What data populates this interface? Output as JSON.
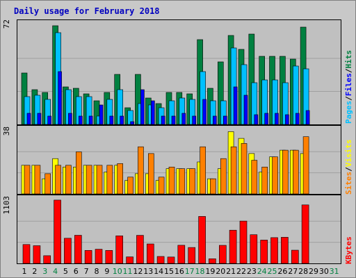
{
  "chart_data": {
    "type": "bar",
    "title": "Daily usage for February 2018",
    "categories": [
      "1",
      "2",
      "3",
      "4",
      "5",
      "6",
      "7",
      "8",
      "9",
      "10",
      "11",
      "12",
      "13",
      "14",
      "15",
      "16",
      "17",
      "18",
      "19",
      "20",
      "21",
      "22",
      "23",
      "24",
      "25",
      "26",
      "27",
      "28",
      "29",
      "30",
      "31"
    ],
    "weekend_days": [
      "3",
      "4",
      "10",
      "11",
      "17",
      "18",
      "24",
      "25",
      "31"
    ],
    "colors": {
      "hits": "#008040",
      "files": "#00c0ff",
      "pages": "#0000ff",
      "visits": "#ffff00",
      "sites": "#ff8000",
      "kbytes": "#ff0000",
      "weekday_label": "#000000",
      "weekend_label": "#008040",
      "title": "#0000c0"
    },
    "panels": [
      {
        "name": "hits_files_pages",
        "ymax_label": "72",
        "ymax": 72,
        "legend": [
          {
            "label": "Pages",
            "color": "#00c0ff"
          },
          {
            "label": "Files",
            "color": "#0000ff"
          },
          {
            "label": "Hits",
            "color": "#008040"
          }
        ],
        "series": [
          {
            "name": "Hits",
            "values": [
              37,
              25,
              23,
              71,
              27,
              26,
              22,
              17,
              23,
              36,
              12,
              36,
              19,
              15,
              23,
              23,
              22,
              61,
              26,
              45,
              64,
              54,
              65,
              49,
              49,
              49,
              47,
              70,
              0,
              0,
              0
            ]
          },
          {
            "name": "Files",
            "values": [
              20,
              21,
              18,
              66,
              25,
              20,
              20,
              6,
              18,
              25,
              10,
              15,
              14,
              12,
              17,
              19,
              18,
              38,
              17,
              17,
              55,
              43,
              30,
              32,
              32,
              30,
              42,
              40,
              0,
              0,
              0
            ]
          },
          {
            "name": "Pages",
            "values": [
              8,
              8,
              6,
              38,
              8,
              6,
              6,
              14,
              6,
              6,
              2,
              25,
              17,
              6,
              6,
              8,
              6,
              18,
              6,
              6,
              27,
              21,
              7,
              8,
              8,
              7,
              8,
              10,
              0,
              0,
              0
            ]
          }
        ]
      },
      {
        "name": "visits_sites",
        "ymax_label": "38",
        "ymax": 38,
        "legend": [
          {
            "label": "Sites",
            "color": "#ff8000"
          },
          {
            "label": "Visits",
            "color": "#ffff00"
          }
        ],
        "series": [
          {
            "name": "Visits",
            "values": [
              17,
              17,
              9,
              21,
              16,
              16,
              17,
              17,
              13,
              17,
              8,
              12,
              12,
              8,
              15,
              15,
              15,
              19,
              9,
              15,
              37,
              33,
              24,
              13,
              22,
              26,
              26,
              24,
              0,
              0,
              0
            ]
          },
          {
            "name": "Sites",
            "values": [
              17,
              17,
              12,
              17,
              17,
              25,
              17,
              17,
              17,
              18,
              10,
              28,
              24,
              10,
              16,
              15,
              15,
              28,
              9,
              21,
              28,
              30,
              20,
              16,
              22,
              26,
              26,
              34,
              0,
              0,
              0
            ]
          }
        ]
      },
      {
        "name": "kbytes",
        "ymax_label": "1103",
        "ymax": 1103,
        "legend": [
          {
            "label": "KBytes",
            "color": "#ff0000"
          }
        ],
        "series": [
          {
            "name": "KBytes",
            "values": [
              326,
              306,
              133,
              1092,
              434,
              485,
              224,
              244,
              224,
              476,
              113,
              484,
              336,
              120,
              110,
              313,
              275,
              810,
              80,
              312,
              573,
              730,
              495,
              403,
              445,
              451,
              228,
              1010,
              0,
              0,
              0
            ]
          }
        ]
      }
    ]
  }
}
